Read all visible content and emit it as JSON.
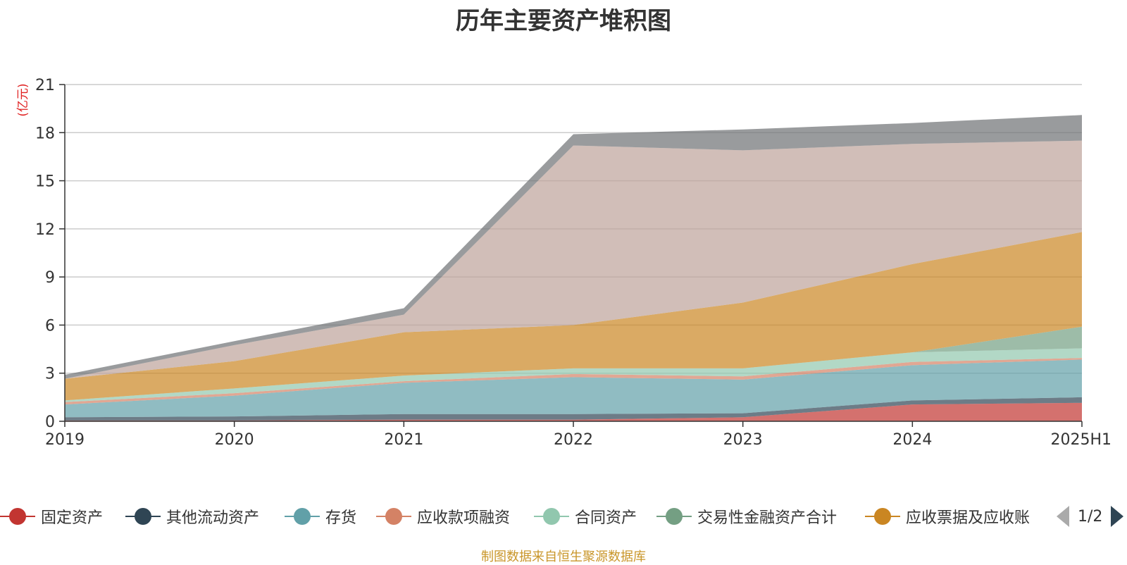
{
  "chart_data": {
    "type": "area",
    "stacked": true,
    "title": "历年主要资产堆积图",
    "ylabel": "(亿元)",
    "xlabel": "",
    "categories": [
      "2019",
      "2020",
      "2021",
      "2022",
      "2023",
      "2024",
      "2025H1"
    ],
    "ylim": [
      0,
      21
    ],
    "yticks": [
      0,
      3,
      6,
      9,
      12,
      15,
      18,
      21
    ],
    "grid": true,
    "series": [
      {
        "name": "固定资产",
        "color": "#c23531",
        "values": [
          0.05,
          0.05,
          0.1,
          0.1,
          0.25,
          1.05,
          1.15
        ]
      },
      {
        "name": "其他流动资产",
        "color": "#2f4554",
        "values": [
          0.2,
          0.25,
          0.35,
          0.35,
          0.25,
          0.25,
          0.35
        ]
      },
      {
        "name": "存货",
        "color": "#61a0a8",
        "values": [
          0.8,
          1.3,
          1.95,
          2.3,
          2.1,
          2.2,
          2.35
        ]
      },
      {
        "name": "应收款项融资",
        "color": "#d48265",
        "values": [
          0.15,
          0.15,
          0.1,
          0.2,
          0.2,
          0.2,
          0.1
        ]
      },
      {
        "name": "合同资产",
        "color": "#91c7ae",
        "values": [
          0.1,
          0.3,
          0.35,
          0.35,
          0.5,
          0.6,
          0.6
        ]
      },
      {
        "name": "交易性金融资产合计",
        "color": "#749f83",
        "values": [
          0,
          0,
          0,
          0,
          0,
          0,
          1.35
        ]
      },
      {
        "name": "应收票据及应收账",
        "color": "#ca8622",
        "values": [
          1.35,
          1.7,
          2.7,
          2.7,
          4.1,
          5.5,
          5.9
        ]
      },
      {
        "name": "",
        "color": "#bda29a",
        "values": [
          0,
          1.0,
          1.1,
          11.2,
          9.5,
          7.5,
          5.7
        ]
      },
      {
        "name": "",
        "color": "#6e7074",
        "values": [
          0.25,
          0.25,
          0.4,
          0.7,
          1.3,
          1.3,
          1.6
        ]
      }
    ],
    "legend_position": "bottom"
  },
  "legend": {
    "items": [
      {
        "label": "固定资产",
        "color": "#c23531"
      },
      {
        "label": "其他流动资产",
        "color": "#2f4554"
      },
      {
        "label": "存货",
        "color": "#61a0a8"
      },
      {
        "label": "应收款项融资",
        "color": "#d48265"
      },
      {
        "label": "合同资产",
        "color": "#91c7ae"
      },
      {
        "label": "交易性金融资产合计",
        "color": "#749f83"
      },
      {
        "label": "应收票据及应收账",
        "color": "#ca8622"
      }
    ],
    "page_indicator": "1/2"
  },
  "footer": {
    "source_text": "制图数据来自恒生聚源数据库"
  }
}
